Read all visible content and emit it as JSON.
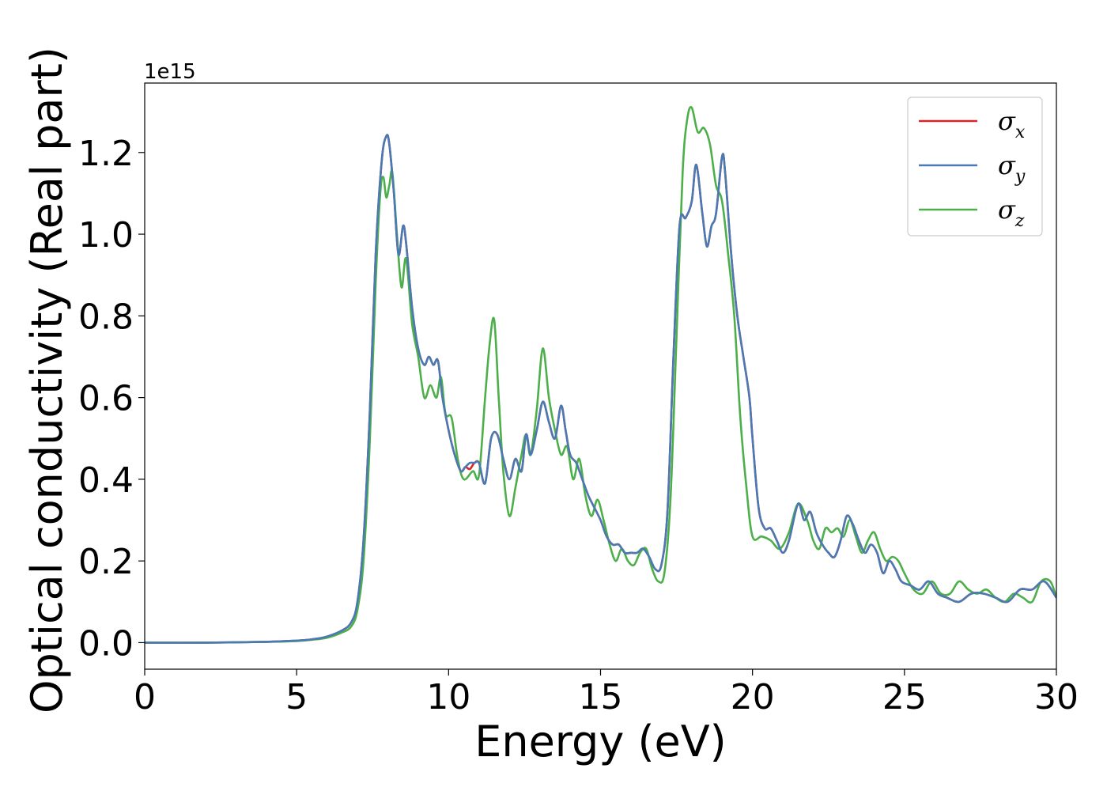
{
  "chart_data": {
    "type": "line",
    "xlabel": "Energy (eV)",
    "ylabel": "Optical conductivity (Real part)",
    "y_offset_label": "1e15",
    "xlim": [
      0,
      30
    ],
    "ylim": [
      -0.065,
      1.37
    ],
    "x_ticks": [
      0,
      5,
      10,
      15,
      20,
      25,
      30
    ],
    "x_tick_labels": [
      "0",
      "5",
      "10",
      "15",
      "20",
      "25",
      "30"
    ],
    "y_ticks": [
      0.0,
      0.2,
      0.4,
      0.6,
      0.8,
      1.0,
      1.2
    ],
    "y_tick_labels": [
      "0.0",
      "0.2",
      "0.4",
      "0.6",
      "0.8",
      "1.0",
      "1.2"
    ],
    "grid": false,
    "legend_position": "top-right",
    "series": [
      {
        "name": "σx",
        "legend_symbol": "σ",
        "legend_sub": "x",
        "color": "#d62728",
        "x": [
          0,
          2,
          4,
          5,
          5.5,
          6,
          6.5,
          6.8,
          7.0,
          7.2,
          7.4,
          7.6,
          7.8,
          7.95,
          8.05,
          8.2,
          8.35,
          8.5,
          8.6,
          8.8,
          9.0,
          9.2,
          9.35,
          9.5,
          9.65,
          9.8,
          10.0,
          10.2,
          10.4,
          10.55,
          10.7,
          10.85,
          11.0,
          11.2,
          11.4,
          11.6,
          11.8,
          12.0,
          12.2,
          12.4,
          12.55,
          12.7,
          12.9,
          13.1,
          13.3,
          13.5,
          13.7,
          13.85,
          14.0,
          14.2,
          14.4,
          14.6,
          14.8,
          15.0,
          15.2,
          15.4,
          15.6,
          15.8,
          16.0,
          16.2,
          16.4,
          16.6,
          16.8,
          17.0,
          17.2,
          17.4,
          17.6,
          17.8,
          18.0,
          18.15,
          18.35,
          18.5,
          18.65,
          18.8,
          19.0,
          19.1,
          19.3,
          19.5,
          19.7,
          19.9,
          20.0,
          20.2,
          20.4,
          20.6,
          20.8,
          21.0,
          21.2,
          21.5,
          21.7,
          21.9,
          22.1,
          22.3,
          22.5,
          22.7,
          22.9,
          23.1,
          23.3,
          23.5,
          23.7,
          23.9,
          24.1,
          24.3,
          24.5,
          24.7,
          24.9,
          25.2,
          25.5,
          25.8,
          26.1,
          26.4,
          26.8,
          27.2,
          27.6,
          28.0,
          28.4,
          28.8,
          29.2,
          29.6,
          30.0
        ],
        "y": [
          0,
          0,
          0.002,
          0.005,
          0.008,
          0.015,
          0.03,
          0.05,
          0.1,
          0.25,
          0.55,
          0.95,
          1.18,
          1.24,
          1.22,
          1.1,
          0.95,
          1.02,
          0.98,
          0.82,
          0.72,
          0.68,
          0.7,
          0.68,
          0.69,
          0.6,
          0.52,
          0.46,
          0.42,
          0.43,
          0.425,
          0.44,
          0.44,
          0.39,
          0.5,
          0.51,
          0.45,
          0.4,
          0.45,
          0.42,
          0.51,
          0.46,
          0.52,
          0.59,
          0.54,
          0.5,
          0.58,
          0.52,
          0.46,
          0.44,
          0.4,
          0.36,
          0.33,
          0.3,
          0.26,
          0.24,
          0.24,
          0.22,
          0.22,
          0.22,
          0.23,
          0.21,
          0.18,
          0.19,
          0.32,
          0.7,
          1.02,
          1.04,
          1.08,
          1.17,
          1.05,
          0.97,
          1.02,
          1.05,
          1.19,
          1.15,
          0.95,
          0.8,
          0.7,
          0.6,
          0.5,
          0.33,
          0.28,
          0.28,
          0.25,
          0.22,
          0.25,
          0.34,
          0.3,
          0.32,
          0.27,
          0.24,
          0.22,
          0.21,
          0.25,
          0.31,
          0.29,
          0.25,
          0.22,
          0.24,
          0.22,
          0.17,
          0.2,
          0.18,
          0.15,
          0.14,
          0.13,
          0.15,
          0.12,
          0.11,
          0.1,
          0.12,
          0.12,
          0.11,
          0.1,
          0.13,
          0.13,
          0.15,
          0.11
        ]
      },
      {
        "name": "σy",
        "legend_symbol": "σ",
        "legend_sub": "y",
        "color": "#4a7ab3",
        "x": [
          0,
          2,
          4,
          5,
          5.5,
          6,
          6.5,
          6.8,
          7.0,
          7.2,
          7.4,
          7.6,
          7.8,
          7.95,
          8.05,
          8.2,
          8.35,
          8.5,
          8.6,
          8.8,
          9.0,
          9.2,
          9.35,
          9.5,
          9.65,
          9.8,
          10.0,
          10.2,
          10.4,
          10.55,
          10.7,
          10.85,
          11.0,
          11.2,
          11.4,
          11.6,
          11.8,
          12.0,
          12.2,
          12.4,
          12.55,
          12.7,
          12.9,
          13.1,
          13.3,
          13.5,
          13.7,
          13.85,
          14.0,
          14.2,
          14.4,
          14.6,
          14.8,
          15.0,
          15.2,
          15.4,
          15.6,
          15.8,
          16.0,
          16.2,
          16.4,
          16.6,
          16.8,
          17.0,
          17.2,
          17.4,
          17.6,
          17.8,
          18.0,
          18.15,
          18.35,
          18.5,
          18.65,
          18.8,
          19.0,
          19.1,
          19.3,
          19.5,
          19.7,
          19.9,
          20.0,
          20.2,
          20.4,
          20.6,
          20.8,
          21.0,
          21.2,
          21.5,
          21.7,
          21.9,
          22.1,
          22.3,
          22.5,
          22.7,
          22.9,
          23.1,
          23.3,
          23.5,
          23.7,
          23.9,
          24.1,
          24.3,
          24.5,
          24.7,
          24.9,
          25.2,
          25.5,
          25.8,
          26.1,
          26.4,
          26.8,
          27.2,
          27.6,
          28.0,
          28.4,
          28.8,
          29.2,
          29.6,
          30.0
        ],
        "y": [
          0,
          0,
          0.002,
          0.005,
          0.008,
          0.015,
          0.03,
          0.05,
          0.1,
          0.25,
          0.55,
          0.95,
          1.18,
          1.24,
          1.22,
          1.1,
          0.95,
          1.02,
          0.98,
          0.82,
          0.72,
          0.68,
          0.7,
          0.68,
          0.69,
          0.6,
          0.52,
          0.46,
          0.42,
          0.43,
          0.44,
          0.44,
          0.44,
          0.39,
          0.5,
          0.51,
          0.45,
          0.4,
          0.45,
          0.42,
          0.51,
          0.46,
          0.52,
          0.59,
          0.54,
          0.5,
          0.58,
          0.52,
          0.46,
          0.44,
          0.4,
          0.36,
          0.33,
          0.3,
          0.26,
          0.24,
          0.24,
          0.22,
          0.22,
          0.22,
          0.23,
          0.21,
          0.18,
          0.19,
          0.32,
          0.7,
          1.02,
          1.04,
          1.08,
          1.17,
          1.05,
          0.97,
          1.02,
          1.05,
          1.19,
          1.15,
          0.95,
          0.8,
          0.7,
          0.6,
          0.5,
          0.33,
          0.28,
          0.28,
          0.25,
          0.22,
          0.25,
          0.34,
          0.3,
          0.32,
          0.27,
          0.24,
          0.22,
          0.21,
          0.25,
          0.31,
          0.29,
          0.25,
          0.22,
          0.24,
          0.22,
          0.17,
          0.2,
          0.18,
          0.15,
          0.14,
          0.13,
          0.15,
          0.12,
          0.11,
          0.1,
          0.12,
          0.12,
          0.11,
          0.1,
          0.13,
          0.13,
          0.15,
          0.11
        ]
      },
      {
        "name": "σz",
        "legend_symbol": "σ",
        "legend_sub": "z",
        "color": "#4daf4a",
        "x": [
          0,
          2,
          4,
          5,
          5.5,
          6,
          6.5,
          6.8,
          7.0,
          7.2,
          7.4,
          7.6,
          7.75,
          7.85,
          7.95,
          8.05,
          8.15,
          8.3,
          8.45,
          8.6,
          8.8,
          9.0,
          9.2,
          9.4,
          9.6,
          9.75,
          9.9,
          10.1,
          10.3,
          10.5,
          10.8,
          11.0,
          11.2,
          11.35,
          11.5,
          11.65,
          11.8,
          12.0,
          12.2,
          12.4,
          12.55,
          12.7,
          12.9,
          13.1,
          13.3,
          13.5,
          13.7,
          13.9,
          14.1,
          14.3,
          14.5,
          14.7,
          14.9,
          15.1,
          15.3,
          15.5,
          15.7,
          15.9,
          16.1,
          16.3,
          16.5,
          16.7,
          16.9,
          17.1,
          17.3,
          17.5,
          17.7,
          17.85,
          18.0,
          18.2,
          18.4,
          18.6,
          18.8,
          19.0,
          19.2,
          19.4,
          19.6,
          19.8,
          20.0,
          20.3,
          20.6,
          20.9,
          21.2,
          21.5,
          21.8,
          22.0,
          22.2,
          22.4,
          22.6,
          22.8,
          23.0,
          23.2,
          23.4,
          23.6,
          23.8,
          24.0,
          24.2,
          24.4,
          24.6,
          24.8,
          25.0,
          25.3,
          25.6,
          25.9,
          26.2,
          26.5,
          26.8,
          27.1,
          27.4,
          27.7,
          28.0,
          28.3,
          28.6,
          28.9,
          29.2,
          29.5,
          29.8,
          30.0
        ],
        "y": [
          0,
          0,
          0.002,
          0.004,
          0.007,
          0.012,
          0.025,
          0.04,
          0.08,
          0.2,
          0.48,
          0.88,
          1.1,
          1.14,
          1.09,
          1.12,
          1.15,
          1.0,
          0.87,
          0.94,
          0.78,
          0.7,
          0.6,
          0.63,
          0.6,
          0.65,
          0.56,
          0.55,
          0.45,
          0.4,
          0.42,
          0.41,
          0.6,
          0.73,
          0.79,
          0.6,
          0.42,
          0.31,
          0.38,
          0.46,
          0.51,
          0.46,
          0.57,
          0.72,
          0.6,
          0.52,
          0.46,
          0.48,
          0.4,
          0.45,
          0.36,
          0.31,
          0.35,
          0.3,
          0.24,
          0.2,
          0.23,
          0.2,
          0.19,
          0.22,
          0.23,
          0.18,
          0.15,
          0.17,
          0.35,
          0.75,
          1.15,
          1.28,
          1.31,
          1.25,
          1.26,
          1.22,
          1.12,
          1.08,
          0.95,
          0.8,
          0.55,
          0.38,
          0.26,
          0.26,
          0.25,
          0.23,
          0.27,
          0.34,
          0.3,
          0.25,
          0.23,
          0.28,
          0.27,
          0.28,
          0.26,
          0.3,
          0.26,
          0.22,
          0.25,
          0.27,
          0.23,
          0.2,
          0.21,
          0.2,
          0.17,
          0.13,
          0.12,
          0.15,
          0.12,
          0.12,
          0.15,
          0.13,
          0.12,
          0.13,
          0.11,
          0.1,
          0.12,
          0.11,
          0.1,
          0.15,
          0.15,
          0.11
        ]
      }
    ]
  }
}
